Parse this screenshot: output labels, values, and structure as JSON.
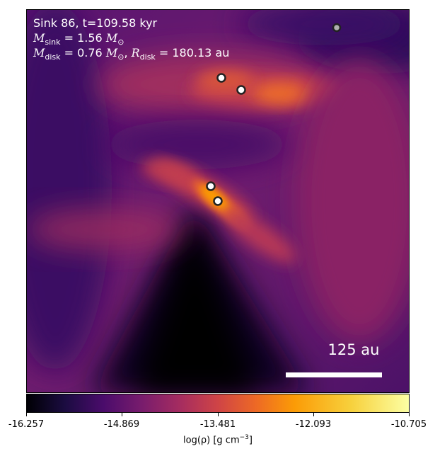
{
  "annotation": {
    "line1": "Sink 86, t=109.58 kyr",
    "m_sink_label": "M",
    "m_sink_sub": "sink",
    "m_sink_value": " = 1.56 ",
    "m_sink_unit": "M",
    "m_sink_unit_sub": "⊙",
    "m_disk_label": "M",
    "m_disk_sub": "disk",
    "m_disk_value": " = 0.76 ",
    "m_disk_unit": "M",
    "m_disk_unit_sub": "⊙",
    "r_disk_sep": ", ",
    "r_disk_label": "R",
    "r_disk_sub": "disk",
    "r_disk_value": " = 180.13 au"
  },
  "scalebar": {
    "label": "125 au"
  },
  "colorbar": {
    "ticks": [
      "-16.257",
      "-14.869",
      "-13.481",
      "-12.093",
      "-10.705"
    ],
    "label_prefix": "log(ρ) [g cm",
    "label_exp": "−3",
    "label_suffix": "]",
    "colormap": "inferno"
  },
  "sinks": [
    {
      "name": "sink-top-right",
      "color": "#b0b0b0"
    },
    {
      "name": "sink-upper-1",
      "color": "#ffffff"
    },
    {
      "name": "sink-upper-2",
      "color": "#ffffff"
    },
    {
      "name": "sink-center-1",
      "color": "#ffffff"
    },
    {
      "name": "sink-center-2",
      "color": "#ffffff"
    }
  ]
}
